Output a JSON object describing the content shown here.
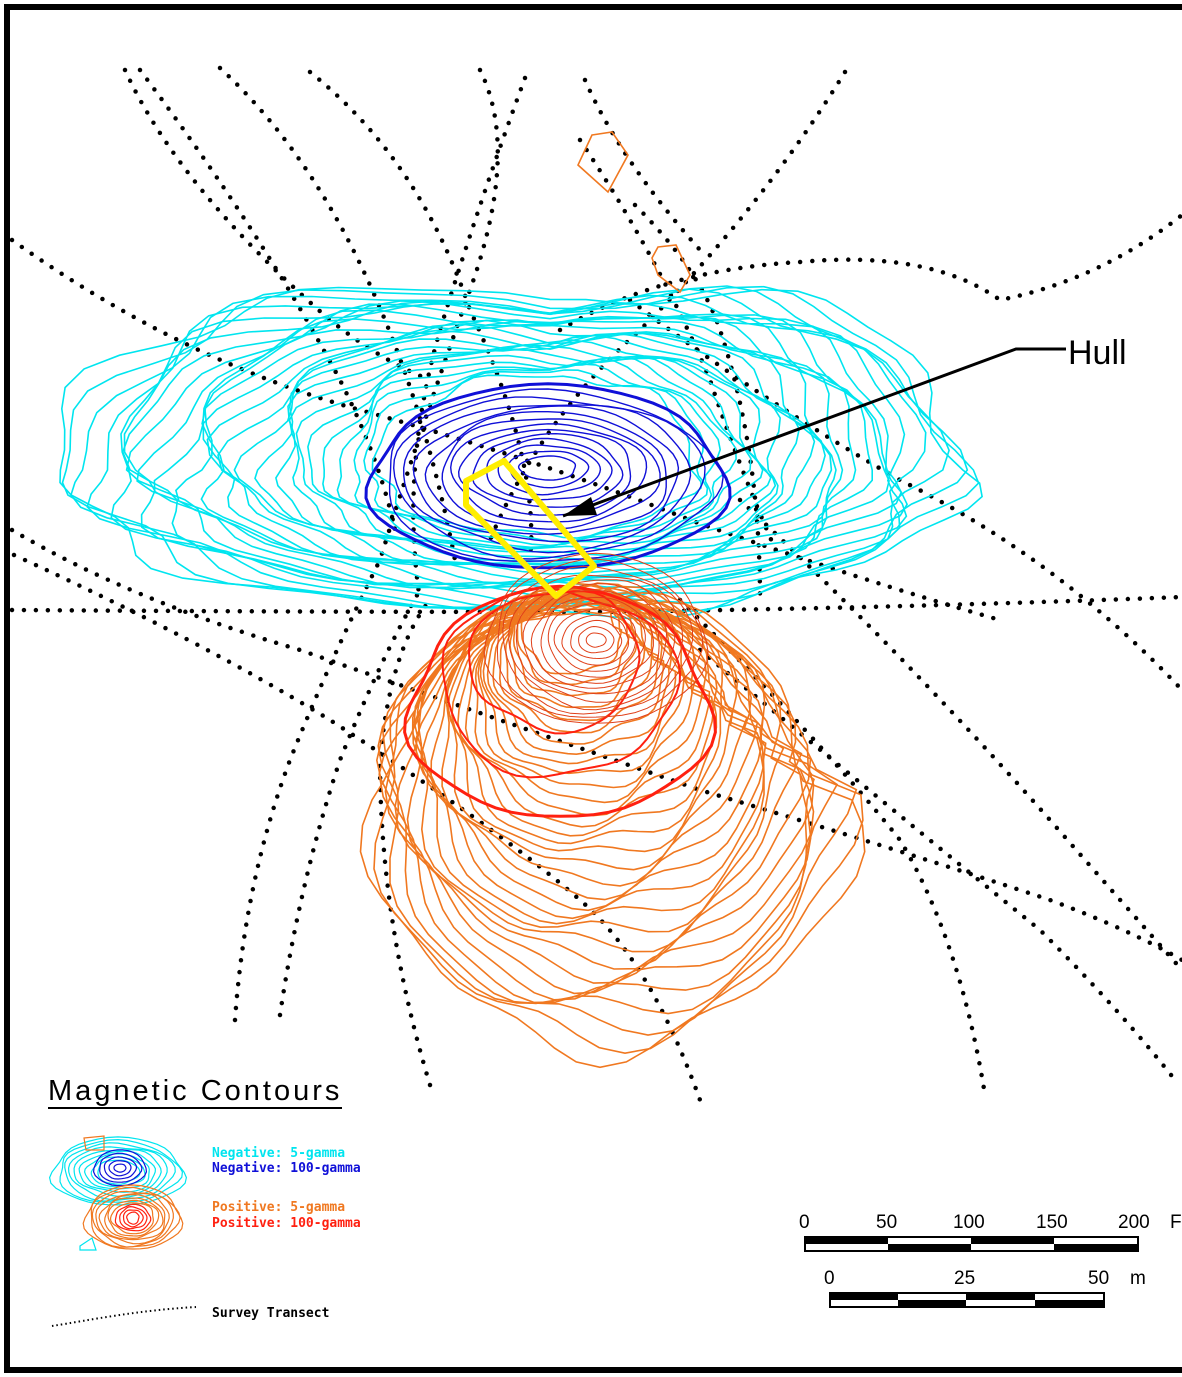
{
  "annotation": {
    "label": "Hull"
  },
  "legend": {
    "title": "Magnetic Contours",
    "items": [
      {
        "label": "Negative: 5-gamma",
        "color": "#00e5ef"
      },
      {
        "label": "Negative: 100-gamma",
        "color": "#1010d8"
      },
      {
        "label": "Positive: 5-gamma",
        "color": "#f07820"
      },
      {
        "label": "Positive: 100-gamma",
        "color": "#ff2010"
      }
    ],
    "transect_label": "Survey Transect",
    "transect_color": "#000000"
  },
  "scale_feet": {
    "ticks": [
      "0",
      "50",
      "100",
      "150",
      "200"
    ],
    "unit": "F"
  },
  "scale_meters": {
    "ticks": [
      "0",
      "25",
      "50"
    ],
    "unit": "m"
  },
  "colors": {
    "hull_outline": "#ffee00",
    "pointer": "#000000"
  }
}
